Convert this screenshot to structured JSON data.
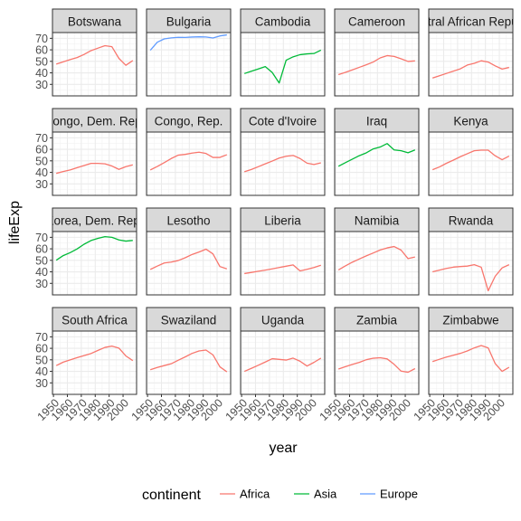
{
  "chart_data": {
    "type": "line",
    "facet_by": "country",
    "xlabel": "year",
    "ylabel": "lifeExp",
    "xlim": [
      1952,
      2007
    ],
    "ylim": [
      20,
      75
    ],
    "x_ticks": [
      1950,
      1960,
      1970,
      1980,
      1990,
      2000
    ],
    "y_ticks": [
      30,
      40,
      50,
      60,
      70
    ],
    "grid": true,
    "legend": {
      "title": "continent",
      "position": "bottom",
      "entries": [
        {
          "name": "Africa",
          "color": "#F8766D"
        },
        {
          "name": "Asia",
          "color": "#00BA38"
        },
        {
          "name": "Europe",
          "color": "#619CFF"
        }
      ]
    },
    "years": [
      1952,
      1957,
      1962,
      1967,
      1972,
      1977,
      1982,
      1987,
      1992,
      1997,
      2002,
      2007
    ],
    "panels": [
      {
        "country": "Botswana",
        "continent": "Africa",
        "values": [
          47.6,
          49.6,
          51.5,
          53.3,
          56.0,
          59.3,
          61.5,
          63.6,
          62.7,
          52.6,
          46.6,
          50.7
        ]
      },
      {
        "country": "Bulgaria",
        "continent": "Europe",
        "values": [
          59.6,
          66.6,
          69.5,
          70.4,
          70.9,
          70.8,
          71.1,
          71.3,
          71.2,
          70.3,
          72.1,
          73.0
        ]
      },
      {
        "country": "Cambodia",
        "continent": "Asia",
        "values": [
          39.4,
          41.4,
          43.4,
          45.4,
          40.3,
          31.2,
          51.0,
          53.9,
          55.8,
          56.5,
          56.8,
          59.7
        ]
      },
      {
        "country": "Cameroon",
        "continent": "Africa",
        "values": [
          38.5,
          40.4,
          42.6,
          44.8,
          47.0,
          49.4,
          53.0,
          55.0,
          54.3,
          52.2,
          49.9,
          50.4
        ]
      },
      {
        "country": "Central African Republic",
        "continent": "Africa",
        "values": [
          35.5,
          37.5,
          39.5,
          41.5,
          43.5,
          46.8,
          48.3,
          50.5,
          49.4,
          46.1,
          43.3,
          44.7
        ]
      },
      {
        "country": "Congo, Dem. Rep.",
        "continent": "Africa",
        "values": [
          39.1,
          40.7,
          42.1,
          44.1,
          45.9,
          47.8,
          47.8,
          47.4,
          45.5,
          42.6,
          44.97,
          46.5
        ]
      },
      {
        "country": "Congo, Rep.",
        "continent": "Africa",
        "values": [
          42.1,
          45.1,
          48.4,
          52.0,
          54.9,
          55.6,
          56.7,
          57.5,
          56.4,
          52.96,
          52.97,
          55.3
        ]
      },
      {
        "country": "Cote d'Ivoire",
        "continent": "Africa",
        "values": [
          40.5,
          42.5,
          44.9,
          47.4,
          49.8,
          52.4,
          53.98,
          54.7,
          52.0,
          47.99,
          46.8,
          48.3
        ]
      },
      {
        "country": "Iraq",
        "continent": "Asia",
        "values": [
          45.3,
          48.4,
          51.5,
          54.5,
          56.95,
          60.4,
          62.0,
          65.0,
          59.5,
          58.8,
          57.0,
          59.5
        ]
      },
      {
        "country": "Kenya",
        "continent": "Africa",
        "values": [
          42.3,
          44.7,
          47.9,
          50.65,
          53.6,
          56.2,
          58.8,
          59.3,
          59.3,
          54.4,
          50.99,
          54.1
        ]
      },
      {
        "country": "Korea, Dem. Rep.",
        "continent": "Asia",
        "values": [
          50.1,
          54.1,
          56.7,
          59.9,
          64.0,
          67.2,
          69.1,
          70.6,
          70.0,
          67.7,
          66.7,
          67.3
        ]
      },
      {
        "country": "Lesotho",
        "continent": "Africa",
        "values": [
          42.1,
          45.0,
          47.7,
          48.5,
          49.8,
          52.2,
          55.1,
          57.2,
          59.7,
          55.6,
          44.6,
          42.6
        ]
      },
      {
        "country": "Liberia",
        "continent": "Africa",
        "values": [
          38.5,
          39.5,
          40.5,
          41.5,
          42.6,
          43.8,
          44.9,
          46.0,
          40.8,
          42.2,
          43.8,
          45.7
        ]
      },
      {
        "country": "Namibia",
        "continent": "Africa",
        "values": [
          41.7,
          45.2,
          48.4,
          51.2,
          53.9,
          56.4,
          58.97,
          60.8,
          62.0,
          58.9,
          51.5,
          52.9
        ]
      },
      {
        "country": "Rwanda",
        "continent": "Africa",
        "values": [
          40.0,
          41.5,
          43.0,
          44.1,
          44.6,
          45.0,
          46.2,
          44.0,
          23.6,
          36.1,
          43.4,
          46.2
        ]
      },
      {
        "country": "South Africa",
        "continent": "Africa",
        "values": [
          45.0,
          48.0,
          49.95,
          51.9,
          53.7,
          55.5,
          58.2,
          60.8,
          61.9,
          60.2,
          53.4,
          49.3
        ]
      },
      {
        "country": "Swaziland",
        "continent": "Africa",
        "values": [
          41.4,
          43.4,
          44.99,
          46.6,
          49.6,
          52.5,
          55.6,
          57.7,
          58.5,
          54.3,
          43.9,
          39.6
        ]
      },
      {
        "country": "Uganda",
        "continent": "Africa",
        "values": [
          39.98,
          42.6,
          45.3,
          48.1,
          51.0,
          50.4,
          49.8,
          51.5,
          48.8,
          44.6,
          47.8,
          51.5
        ]
      },
      {
        "country": "Zambia",
        "continent": "Africa",
        "values": [
          42.0,
          44.1,
          46.0,
          47.8,
          50.1,
          51.4,
          51.8,
          50.8,
          46.1,
          40.2,
          39.2,
          42.4
        ]
      },
      {
        "country": "Zimbabwe",
        "continent": "Africa",
        "values": [
          48.5,
          50.5,
          52.4,
          54.0,
          55.6,
          57.7,
          60.4,
          62.4,
          60.4,
          46.8,
          39.99,
          43.5
        ]
      }
    ]
  }
}
